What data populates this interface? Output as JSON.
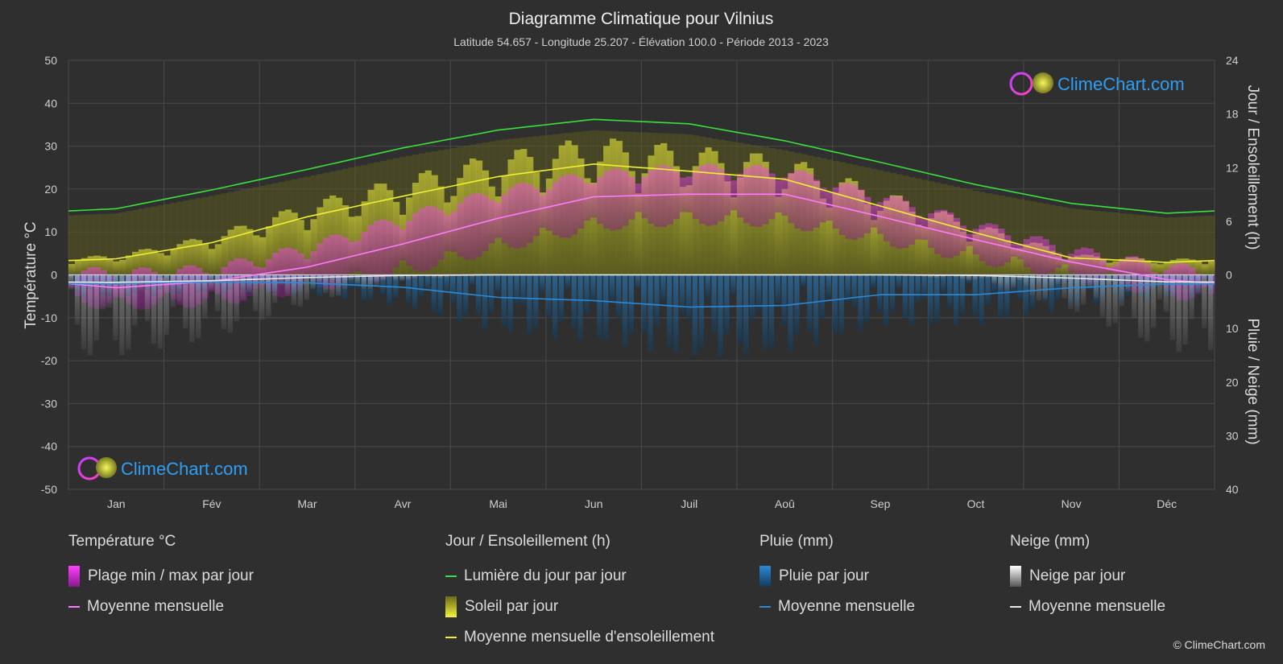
{
  "title": "Diagramme Climatique pour Vilnius",
  "subtitle": "Latitude 54.657 - Longitude 25.207 - Élévation 100.0 - Période 2013 - 2023",
  "brand": "ClimeChart.com",
  "copyright": "© ClimeChart.com",
  "colors": {
    "background": "#2f2f2f",
    "daylight": "#3be03b",
    "sunshine_mean": "#f0f032",
    "temp_mean": "#ff7aff",
    "rain_mean": "#2a8ad8",
    "snow_mean": "#e8e8e8",
    "temp_band": "#d83cd8",
    "sun_band": "#a8a828",
    "brand_text": "#2f9ef5"
  },
  "chart_data": {
    "type": "area",
    "x": [
      "Jan",
      "Fév",
      "Mar",
      "Avr",
      "Mai",
      "Jun",
      "Juil",
      "Aoû",
      "Sep",
      "Oct",
      "Nov",
      "Déc"
    ],
    "axes": {
      "left": {
        "label": "Température °C",
        "range": [
          -50,
          50
        ],
        "ticks": [
          "50",
          "40",
          "30",
          "20",
          "10",
          "0",
          "-10",
          "-20",
          "-30",
          "-40",
          "-50"
        ]
      },
      "right_top": {
        "label": "Jour / Ensoleillement (h)",
        "range": [
          0,
          24
        ],
        "ticks": [
          "24",
          "18",
          "12",
          "6",
          "0"
        ]
      },
      "right_bottom": {
        "label": "Pluie / Neige (mm)",
        "range": [
          0,
          40
        ],
        "ticks": [
          "10",
          "20",
          "30",
          "40"
        ]
      }
    },
    "series": [
      {
        "name": "Lumière du jour par jour",
        "axis": "right_top",
        "values": [
          7.4,
          9.5,
          11.8,
          14.2,
          16.2,
          17.4,
          16.9,
          15.0,
          12.6,
          10.1,
          8.0,
          6.9
        ]
      },
      {
        "name": "Moyenne mensuelle d'ensoleillement",
        "axis": "right_top",
        "values": [
          1.8,
          3.6,
          6.5,
          8.8,
          11.0,
          12.4,
          11.6,
          10.7,
          7.7,
          4.7,
          1.9,
          1.4
        ]
      },
      {
        "name": "Moyenne mensuelle",
        "group": "Température °C",
        "axis": "left",
        "values": [
          -3.0,
          -1.5,
          1.8,
          7.2,
          13.2,
          18.2,
          18.8,
          18.8,
          13.6,
          8.2,
          3.0,
          -1.1
        ]
      },
      {
        "name": "Moyenne mensuelle",
        "group": "Pluie (mm)",
        "axis": "right_bottom",
        "values": [
          1.6,
          1.3,
          1.5,
          2.3,
          4.2,
          4.8,
          6.0,
          5.7,
          3.7,
          3.7,
          2.4,
          1.7
        ]
      },
      {
        "name": "Moyenne mensuelle",
        "group": "Neige (mm)",
        "axis": "right_bottom",
        "values": [
          1.4,
          1.1,
          0.5,
          0.1,
          0.0,
          0.0,
          0.0,
          0.0,
          0.0,
          0.1,
          0.6,
          1.3
        ]
      }
    ],
    "bands": {
      "temp_max": [
        -0.5,
        0.5,
        5.5,
        12.5,
        18.5,
        22.5,
        24.0,
        23.5,
        17.5,
        11.0,
        5.0,
        1.0
      ],
      "temp_min": [
        -6.5,
        -5.5,
        -2.5,
        1.5,
        7.0,
        12.0,
        13.5,
        13.0,
        9.0,
        4.5,
        0.5,
        -3.5
      ]
    },
    "grid": true
  },
  "legend": {
    "groups": [
      {
        "title": "Température °C",
        "items": [
          {
            "label": "Plage min / max par jour"
          },
          {
            "label": "Moyenne mensuelle"
          }
        ]
      },
      {
        "title": "Jour / Ensoleillement (h)",
        "items": [
          {
            "label": "Lumière du jour par jour"
          },
          {
            "label": "Soleil par jour"
          },
          {
            "label": "Moyenne mensuelle d'ensoleillement"
          }
        ]
      },
      {
        "title": "Pluie (mm)",
        "items": [
          {
            "label": "Pluie par jour"
          },
          {
            "label": "Moyenne mensuelle"
          }
        ]
      },
      {
        "title": "Neige (mm)",
        "items": [
          {
            "label": "Neige par jour"
          },
          {
            "label": "Moyenne mensuelle"
          }
        ]
      }
    ]
  }
}
